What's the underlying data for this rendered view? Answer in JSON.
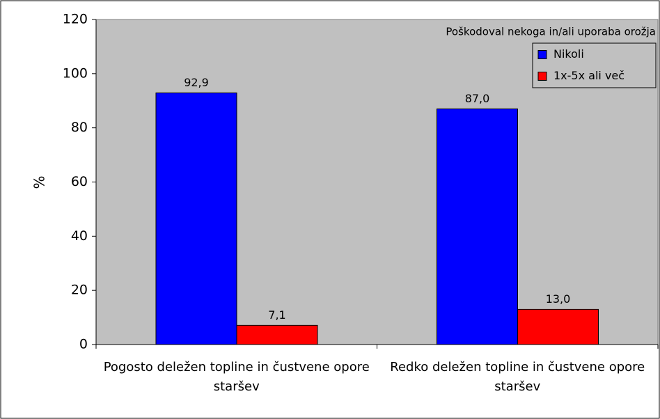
{
  "chart_data": {
    "type": "bar",
    "y_label": "%",
    "legend_title": "Poškodoval nekoga in/ali uporaba orožja",
    "legend_position": "upper right",
    "categories": [
      "Pogosto deležen topline in čustvene opore staršev",
      "Redko deležen topline in čustvene opore staršev"
    ],
    "series": [
      {
        "name": "Nikoli",
        "color": "#0000ff",
        "values": [
          92.9,
          87.0
        ],
        "value_labels": [
          "92,9",
          "87,0"
        ]
      },
      {
        "name": "1x-5x ali več",
        "color": "#ff0000",
        "values": [
          7.1,
          13.0
        ],
        "value_labels": [
          "7,1",
          "13,0"
        ]
      }
    ],
    "ylim": [
      0,
      120
    ],
    "yticks": [
      0,
      20,
      40,
      60,
      80,
      100,
      120
    ],
    "grid": false
  }
}
